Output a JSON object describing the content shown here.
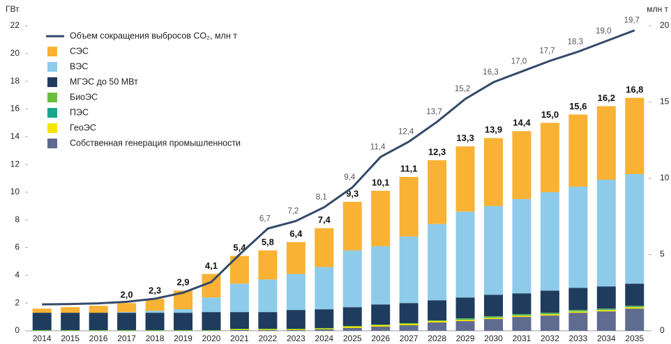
{
  "chart_data": {
    "type": "bar",
    "y_label": "ГВт",
    "y2_label": "млн т",
    "categories": [
      "2014",
      "2015",
      "2016",
      "2017",
      "2018",
      "2019",
      "2020",
      "2021",
      "2022",
      "2023",
      "2024",
      "2025",
      "2026",
      "2027",
      "2028",
      "2029",
      "2030",
      "2031",
      "2032",
      "2033",
      "2034",
      "2035"
    ],
    "ylim": [
      0,
      22
    ],
    "yticks": [
      0,
      2,
      4,
      6,
      8,
      10,
      12,
      14,
      16,
      18,
      20,
      22
    ],
    "y2lim": [
      0,
      20
    ],
    "y2ticks": [
      0,
      5,
      10,
      15,
      20
    ],
    "stacked": true,
    "legend": "top-left",
    "series": [
      {
        "name": "СЭС",
        "color": "#f9b233",
        "values": [
          0.3,
          0.4,
          0.5,
          0.65,
          0.85,
          1.35,
          1.7,
          2.0,
          2.1,
          2.3,
          2.8,
          3.5,
          4.0,
          4.3,
          4.6,
          4.7,
          4.9,
          4.9,
          5.0,
          5.2,
          5.3,
          5.5
        ]
      },
      {
        "name": "ВЭС",
        "color": "#8ecbea",
        "values": [
          0,
          0,
          0,
          0.05,
          0.15,
          0.25,
          1.05,
          2.05,
          2.35,
          2.6,
          3.05,
          4.1,
          4.2,
          4.8,
          5.5,
          6.2,
          6.4,
          6.8,
          7.1,
          7.3,
          7.7,
          7.9
        ]
      },
      {
        "name": "МГЭС до 50 МВт",
        "color": "#1f3c5e",
        "values": [
          1.25,
          1.25,
          1.25,
          1.25,
          1.25,
          1.25,
          1.3,
          1.2,
          1.2,
          1.35,
          1.35,
          1.35,
          1.45,
          1.45,
          1.45,
          1.5,
          1.55,
          1.5,
          1.6,
          1.6,
          1.6,
          1.6
        ]
      },
      {
        "name": "БиоЭС",
        "color": "#6abf3f",
        "values": [
          0.05,
          0.05,
          0.05,
          0.05,
          0.05,
          0.05,
          0.05,
          0.05,
          0.05,
          0.05,
          0.05,
          0.05,
          0.05,
          0.05,
          0.05,
          0.05,
          0.05,
          0.05,
          0.05,
          0.05,
          0.05,
          0.05
        ]
      },
      {
        "name": "ПЭС",
        "color": "#1aa68a",
        "values": [
          0,
          0,
          0,
          0,
          0,
          0,
          0,
          0,
          0,
          0,
          0,
          0,
          0,
          0,
          0,
          0.05,
          0.05,
          0.05,
          0.05,
          0.05,
          0.05,
          0.05
        ]
      },
      {
        "name": "ГеоЭС",
        "color": "#f5e400",
        "values": [
          0,
          0,
          0,
          0,
          0,
          0,
          0,
          0.05,
          0.05,
          0.05,
          0.05,
          0.1,
          0.1,
          0.1,
          0.1,
          0.1,
          0.1,
          0.1,
          0.1,
          0.1,
          0.1,
          0.1
        ]
      },
      {
        "name": "Собственная генерация промышленности",
        "color": "#5f6b8f",
        "values": [
          0,
          0,
          0,
          0,
          0,
          0,
          0,
          0.05,
          0.05,
          0.05,
          0.1,
          0.2,
          0.3,
          0.4,
          0.6,
          0.7,
          0.85,
          1.0,
          1.1,
          1.3,
          1.4,
          1.6
        ]
      }
    ],
    "totals": {
      "values": [
        null,
        null,
        null,
        2.0,
        2.3,
        2.9,
        4.1,
        5.4,
        5.8,
        6.4,
        7.4,
        9.3,
        10.1,
        11.1,
        12.3,
        13.3,
        13.9,
        14.4,
        15.0,
        15.6,
        16.2,
        16.8
      ],
      "value_labels": [
        null,
        null,
        null,
        "2,0",
        "2,3",
        "2,9",
        "4,1",
        "5,4",
        "5,8",
        "6,4",
        "7,4",
        "9,3",
        "10,1",
        "11,1",
        "12,3",
        "13,3",
        "13,9",
        "14,4",
        "15,0",
        "15,6",
        "16,2",
        "16,8"
      ]
    },
    "line": {
      "name": "Объем сокращения выбросов CO₂, млн т",
      "color": "#34496a",
      "axis": "y2",
      "values": [
        1.73,
        1.75,
        1.8,
        1.9,
        2.1,
        2.5,
        3.2,
        5.0,
        6.7,
        7.2,
        8.1,
        9.4,
        11.4,
        12.4,
        13.7,
        15.2,
        16.3,
        17.0,
        17.7,
        18.3,
        19.0,
        19.7
      ],
      "value_labels": [
        null,
        null,
        null,
        null,
        null,
        null,
        null,
        null,
        "6,7",
        "7,2",
        "8,1",
        "9,4",
        "11,4",
        "12,4",
        "13,7",
        "15,2",
        "16,3",
        "17,0",
        "17,7",
        "18,3",
        "19,0",
        "19,7"
      ]
    }
  }
}
